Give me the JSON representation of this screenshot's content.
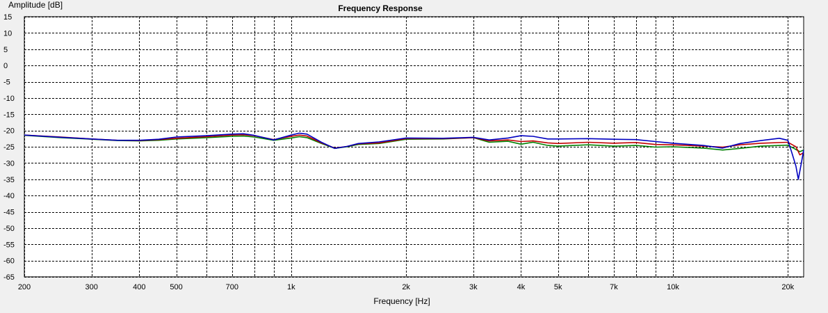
{
  "chart_data": {
    "type": "line",
    "title": "Frequency Response",
    "xlabel": "Frequency [Hz]",
    "ylabel": "Amplitude [dB]",
    "xscale": "log",
    "xlim": [
      200,
      22000
    ],
    "ylim": [
      -65,
      15
    ],
    "grid": true,
    "colors": {
      "background": "#ffffff",
      "window": "#f0f0f0",
      "grid": "#000000"
    },
    "x_ticks": [
      {
        "value": 200,
        "label": "200"
      },
      {
        "value": 300,
        "label": "300"
      },
      {
        "value": 400,
        "label": "400"
      },
      {
        "value": 500,
        "label": "500"
      },
      {
        "value": 700,
        "label": "700"
      },
      {
        "value": 1000,
        "label": "1k"
      },
      {
        "value": 2000,
        "label": "2k"
      },
      {
        "value": 3000,
        "label": "3k"
      },
      {
        "value": 4000,
        "label": "4k"
      },
      {
        "value": 5000,
        "label": "5k"
      },
      {
        "value": 7000,
        "label": "7k"
      },
      {
        "value": 10000,
        "label": "10k"
      },
      {
        "value": 20000,
        "label": "20k"
      }
    ],
    "x_grid": [
      200,
      300,
      400,
      500,
      600,
      700,
      800,
      900,
      1000,
      2000,
      3000,
      4000,
      5000,
      6000,
      7000,
      8000,
      9000,
      10000,
      20000
    ],
    "y_ticks": [
      15,
      10,
      5,
      0,
      -5,
      -10,
      -15,
      -20,
      -25,
      -30,
      -35,
      -40,
      -45,
      -50,
      -55,
      -60,
      -65
    ],
    "series": [
      {
        "color": "#008000",
        "points": [
          [
            200,
            -21.5
          ],
          [
            250,
            -22.2
          ],
          [
            300,
            -22.7
          ],
          [
            350,
            -23.1
          ],
          [
            400,
            -23.2
          ],
          [
            450,
            -23.0
          ],
          [
            500,
            -22.6
          ],
          [
            600,
            -22.2
          ],
          [
            700,
            -21.8
          ],
          [
            750,
            -21.7
          ],
          [
            800,
            -22.0
          ],
          [
            900,
            -23.0
          ],
          [
            1000,
            -22.3
          ],
          [
            1050,
            -21.9
          ],
          [
            1100,
            -22.2
          ],
          [
            1200,
            -24.0
          ],
          [
            1300,
            -25.5
          ],
          [
            1400,
            -25.0
          ],
          [
            1500,
            -24.3
          ],
          [
            1700,
            -24.0
          ],
          [
            2000,
            -22.7
          ],
          [
            2500,
            -22.6
          ],
          [
            3000,
            -22.2
          ],
          [
            3300,
            -23.6
          ],
          [
            3700,
            -23.3
          ],
          [
            4000,
            -24.2
          ],
          [
            4300,
            -23.6
          ],
          [
            4700,
            -24.6
          ],
          [
            5000,
            -24.8
          ],
          [
            6000,
            -24.4
          ],
          [
            7000,
            -24.8
          ],
          [
            8000,
            -24.6
          ],
          [
            9000,
            -25.1
          ],
          [
            10000,
            -25.0
          ],
          [
            12000,
            -25.4
          ],
          [
            13500,
            -26.0
          ],
          [
            15000,
            -25.5
          ],
          [
            17000,
            -24.8
          ],
          [
            20000,
            -24.5
          ],
          [
            21500,
            -26.5
          ],
          [
            22000,
            -26.0
          ]
        ]
      },
      {
        "color": "#c00000",
        "points": [
          [
            200,
            -21.4
          ],
          [
            250,
            -22.0
          ],
          [
            300,
            -22.6
          ],
          [
            350,
            -23.0
          ],
          [
            400,
            -23.1
          ],
          [
            450,
            -22.8
          ],
          [
            500,
            -22.4
          ],
          [
            600,
            -21.9
          ],
          [
            700,
            -21.4
          ],
          [
            750,
            -21.3
          ],
          [
            800,
            -21.6
          ],
          [
            900,
            -22.8
          ],
          [
            1000,
            -21.8
          ],
          [
            1050,
            -21.4
          ],
          [
            1100,
            -21.7
          ],
          [
            1200,
            -23.8
          ],
          [
            1300,
            -25.4
          ],
          [
            1400,
            -24.9
          ],
          [
            1500,
            -24.1
          ],
          [
            1700,
            -23.8
          ],
          [
            2000,
            -22.5
          ],
          [
            2500,
            -22.5
          ],
          [
            3000,
            -22.2
          ],
          [
            3300,
            -23.2
          ],
          [
            3700,
            -22.9
          ],
          [
            4000,
            -23.4
          ],
          [
            4300,
            -23.2
          ],
          [
            4700,
            -23.8
          ],
          [
            5000,
            -24.0
          ],
          [
            6000,
            -23.6
          ],
          [
            7000,
            -23.9
          ],
          [
            8000,
            -23.7
          ],
          [
            9000,
            -24.3
          ],
          [
            10000,
            -24.4
          ],
          [
            12000,
            -24.8
          ],
          [
            13500,
            -25.1
          ],
          [
            15000,
            -24.4
          ],
          [
            17000,
            -23.9
          ],
          [
            20000,
            -23.6
          ],
          [
            21000,
            -25.0
          ],
          [
            21500,
            -27.5
          ],
          [
            22000,
            -26.8
          ]
        ]
      },
      {
        "color": "#0000c0",
        "points": [
          [
            200,
            -21.4
          ],
          [
            250,
            -22.1
          ],
          [
            300,
            -22.6
          ],
          [
            350,
            -23.0
          ],
          [
            400,
            -23.0
          ],
          [
            450,
            -22.7
          ],
          [
            500,
            -22.0
          ],
          [
            600,
            -21.6
          ],
          [
            700,
            -21.1
          ],
          [
            750,
            -21.0
          ],
          [
            800,
            -21.5
          ],
          [
            900,
            -22.9
          ],
          [
            1000,
            -21.4
          ],
          [
            1050,
            -20.8
          ],
          [
            1100,
            -21.1
          ],
          [
            1200,
            -23.6
          ],
          [
            1300,
            -25.5
          ],
          [
            1400,
            -24.9
          ],
          [
            1500,
            -24.0
          ],
          [
            1700,
            -23.5
          ],
          [
            2000,
            -22.3
          ],
          [
            2500,
            -22.4
          ],
          [
            3000,
            -22.1
          ],
          [
            3300,
            -22.9
          ],
          [
            3700,
            -22.3
          ],
          [
            4000,
            -21.6
          ],
          [
            4300,
            -21.8
          ],
          [
            4700,
            -22.6
          ],
          [
            5000,
            -22.6
          ],
          [
            6000,
            -22.5
          ],
          [
            7000,
            -22.7
          ],
          [
            8000,
            -22.8
          ],
          [
            9000,
            -23.4
          ],
          [
            10000,
            -23.9
          ],
          [
            12000,
            -24.6
          ],
          [
            13500,
            -25.4
          ],
          [
            15000,
            -24.0
          ],
          [
            17000,
            -23.1
          ],
          [
            19000,
            -22.4
          ],
          [
            20000,
            -23.0
          ],
          [
            20500,
            -27.0
          ],
          [
            21000,
            -31.0
          ],
          [
            21300,
            -35.0
          ],
          [
            21700,
            -30.0
          ],
          [
            22000,
            -26.0
          ]
        ]
      }
    ]
  }
}
